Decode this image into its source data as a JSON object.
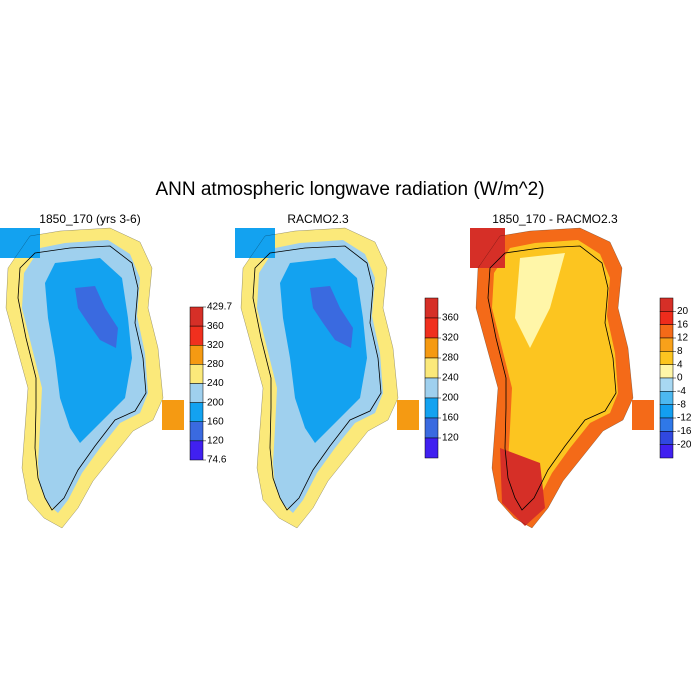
{
  "title": "ANN atmospheric longwave radiation (W/m^2)",
  "panels": [
    {
      "subtitle": "1850_170 (yrs 3-6)",
      "colorbar": {
        "ticks": [
          429.7,
          360,
          320,
          280,
          240,
          200,
          160,
          120,
          74.6
        ],
        "colors": [
          "#d62f27",
          "#f0301e",
          "#f59a12",
          "#fbe97a",
          "#9fd0ee",
          "#13a2f0",
          "#3a6ae0",
          "#4020f0"
        ]
      }
    },
    {
      "subtitle": "RACMO2.3",
      "colorbar": {
        "ticks": [
          360,
          320,
          280,
          240,
          200,
          160,
          120
        ],
        "colors": [
          "#d62f27",
          "#f0301e",
          "#f59a12",
          "#fbe97a",
          "#9fd0ee",
          "#13a2f0",
          "#3a6ae0",
          "#4020f0"
        ]
      }
    },
    {
      "subtitle": "1850_170 - RACMO2.3",
      "colorbar": {
        "ticks": [
          20,
          16,
          12,
          8,
          4,
          0,
          -4,
          -8,
          -12,
          -16,
          -20
        ],
        "colors": [
          "#d62f27",
          "#ee2c1c",
          "#f46a18",
          "#f8a11a",
          "#fcc520",
          "#fff6a8",
          "#a8d8f2",
          "#4cb8f0",
          "#139ef0",
          "#2f78e8",
          "#3048e0",
          "#4020f0"
        ]
      }
    }
  ]
}
